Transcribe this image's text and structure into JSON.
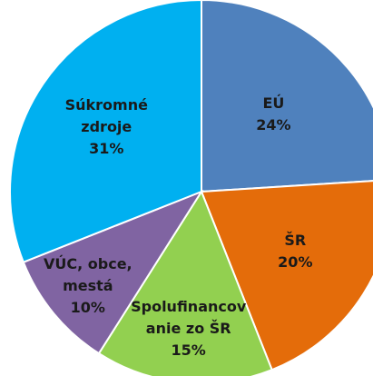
{
  "chart_data": {
    "type": "pie",
    "categories": [
      "EÚ",
      "ŠR",
      "Spolufinancovanie zo ŠR",
      "VÚC, obce, mestá",
      "Súkromné zdroje"
    ],
    "values": [
      24,
      20,
      15,
      10,
      31
    ],
    "value_labels": [
      "24%",
      "20%",
      "15%",
      "10%",
      "31%"
    ],
    "colors": [
      "#4f81bd",
      "#e46c0a",
      "#92d050",
      "#8064a2",
      "#00b0f0"
    ]
  }
}
